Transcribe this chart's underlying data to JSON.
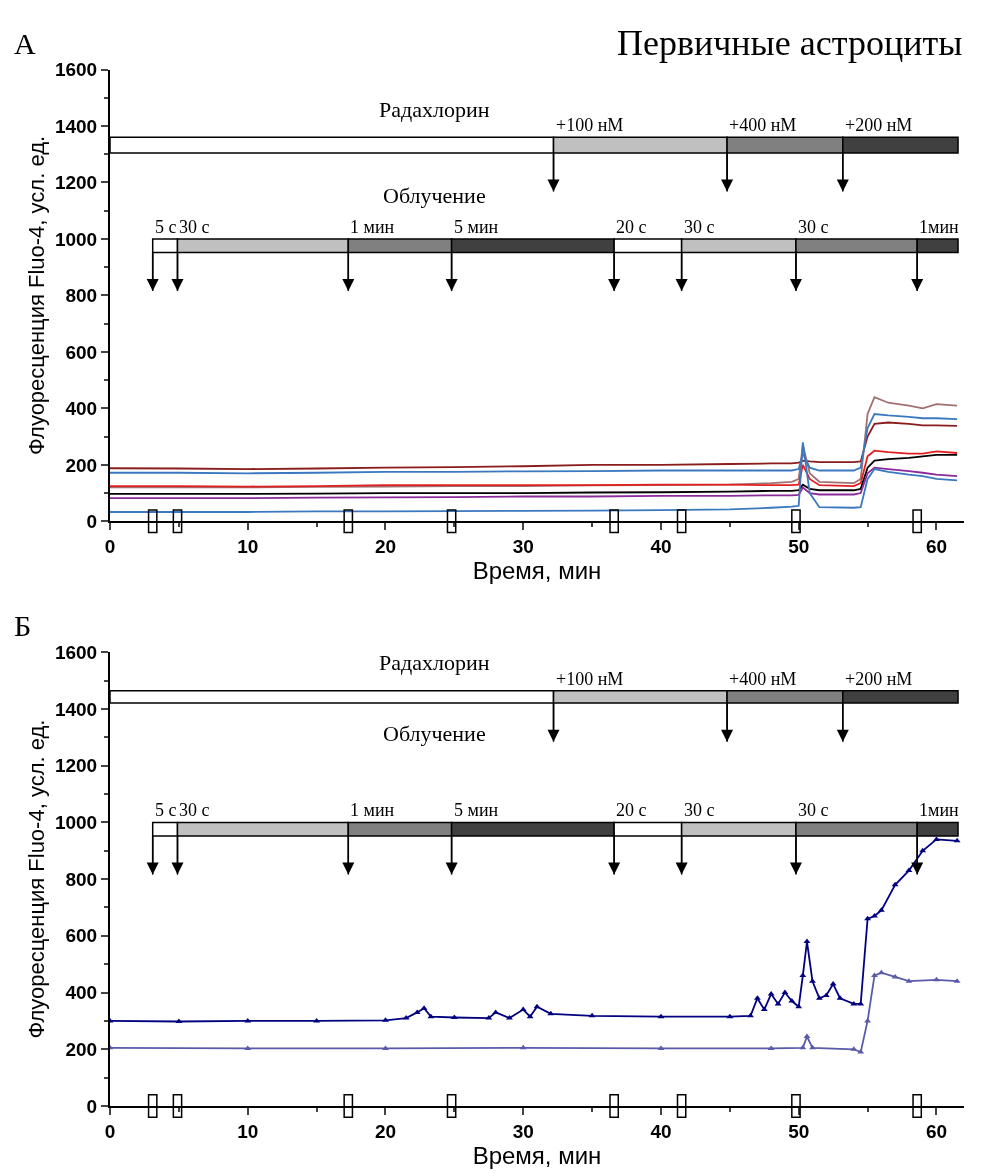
{
  "chart_data": [
    {
      "type": "line",
      "title": "Первичные астроциты",
      "xlabel": "Время, мин",
      "ylabel": "Флуоресценция Fluo-4, усл. ед.",
      "annotations": [
        "А",
        "Радахлорин",
        "Облучение"
      ],
      "xlim": [
        0,
        62
      ],
      "xticks": [
        0,
        10,
        20,
        30,
        40,
        50,
        60
      ],
      "ylim": [
        0,
        1600
      ],
      "yticks": [
        0,
        200,
        400,
        600,
        800,
        1000,
        1200,
        1400,
        1600
      ],
      "marker": "none",
      "series": [
        {
          "color": "#8b1c1c",
          "x": [
            0,
            5,
            10,
            15,
            20,
            25,
            30,
            35,
            40,
            45,
            48,
            49.5,
            50.0,
            50.3,
            50.8,
            51.5,
            54.0,
            54.5,
            55.0,
            55.5,
            56.5,
            58,
            59,
            60,
            61.5
          ],
          "values": [
            188,
            187,
            185,
            187,
            190,
            192,
            195,
            200,
            200,
            203,
            205,
            205,
            208,
            215,
            212,
            210,
            210,
            212,
            300,
            345,
            350,
            345,
            340,
            340,
            338
          ]
        },
        {
          "color": "#a07070",
          "x": [
            0,
            5,
            10,
            15,
            20,
            25,
            30,
            35,
            40,
            45,
            48,
            49.5,
            50.0,
            50.3,
            50.8,
            51.5,
            54.0,
            54.5,
            55.0,
            55.5,
            56.5,
            58,
            59,
            60,
            61.5
          ],
          "values": [
            120,
            120,
            120,
            122,
            123,
            125,
            125,
            127,
            128,
            130,
            135,
            140,
            150,
            270,
            170,
            140,
            135,
            150,
            380,
            440,
            420,
            410,
            400,
            415,
            410
          ]
        },
        {
          "color": "#3a78c0",
          "x": [
            0,
            5,
            10,
            15,
            20,
            25,
            30,
            35,
            40,
            45,
            48,
            49.5,
            50.0,
            50.3,
            50.8,
            51.5,
            54.0,
            54.5,
            55.0,
            55.5,
            56.5,
            58,
            59,
            60,
            61.5
          ],
          "values": [
            172,
            172,
            170,
            172,
            175,
            175,
            177,
            178,
            180,
            180,
            180,
            180,
            185,
            240,
            190,
            180,
            180,
            190,
            330,
            380,
            375,
            370,
            365,
            365,
            362
          ]
        },
        {
          "color": "#e02020",
          "x": [
            0,
            5,
            10,
            15,
            20,
            25,
            30,
            35,
            40,
            45,
            48,
            49.5,
            50.0,
            50.3,
            50.8,
            51.5,
            54.0,
            54.5,
            55.0,
            55.5,
            56.5,
            58,
            59,
            60,
            61.5
          ],
          "values": [
            125,
            125,
            123,
            125,
            128,
            128,
            128,
            128,
            130,
            130,
            128,
            128,
            130,
            200,
            150,
            128,
            125,
            135,
            230,
            250,
            245,
            240,
            240,
            248,
            242
          ]
        },
        {
          "color": "#000000",
          "x": [
            0,
            5,
            10,
            15,
            20,
            25,
            30,
            35,
            40,
            45,
            48,
            49.5,
            50.0,
            50.3,
            50.8,
            51.5,
            54.0,
            54.5,
            55.0,
            55.5,
            56.5,
            58,
            59,
            60,
            61.5
          ],
          "values": [
            97,
            97,
            97,
            98,
            100,
            100,
            100,
            102,
            103,
            105,
            108,
            108,
            110,
            130,
            115,
            110,
            110,
            115,
            190,
            215,
            220,
            225,
            230,
            235,
            235
          ]
        },
        {
          "color": "#8b2a9b",
          "x": [
            0,
            5,
            10,
            15,
            20,
            25,
            30,
            35,
            40,
            45,
            48,
            49.5,
            50.0,
            50.3,
            50.8,
            51.5,
            54.0,
            54.5,
            55.0,
            55.5,
            56.5,
            58,
            59,
            60,
            61.5
          ],
          "values": [
            82,
            82,
            82,
            84,
            85,
            86,
            88,
            88,
            90,
            90,
            92,
            92,
            94,
            120,
            100,
            95,
            95,
            100,
            170,
            190,
            185,
            178,
            172,
            165,
            160
          ]
        },
        {
          "color": "#3a78c0",
          "x": [
            0,
            5,
            10,
            15,
            20,
            25,
            30,
            35,
            40,
            45,
            48,
            49.5,
            50.0,
            50.3,
            50.8,
            51.5,
            54.0,
            54.5,
            55.0,
            55.5,
            56.5,
            58,
            59,
            60,
            61.5
          ],
          "values": [
            33,
            33,
            33,
            35,
            35,
            36,
            37,
            38,
            40,
            42,
            48,
            52,
            55,
            280,
            100,
            50,
            48,
            50,
            150,
            185,
            175,
            165,
            160,
            150,
            145
          ]
        }
      ],
      "ref_lines": [
        {
          "axis": "x",
          "value": 32.2,
          "label": "+100 нМ"
        },
        {
          "axis": "x",
          "value": 44.8,
          "label": "+400 нМ"
        },
        {
          "axis": "x",
          "value": 53.2,
          "label": "+200 нМ"
        },
        {
          "axis": "x",
          "value": 3.1,
          "label": "5 с"
        },
        {
          "axis": "x",
          "value": 4.9,
          "label": "30 с"
        },
        {
          "axis": "x",
          "value": 17.3,
          "label": "1 мин"
        },
        {
          "axis": "x",
          "value": 24.8,
          "label": "5 мин"
        },
        {
          "axis": "x",
          "value": 36.6,
          "label": "20 с"
        },
        {
          "axis": "x",
          "value": 41.5,
          "label": "30 с"
        },
        {
          "axis": "x",
          "value": 49.8,
          "label": "30 с"
        },
        {
          "axis": "x",
          "value": 58.6,
          "label": "1мин"
        }
      ]
    },
    {
      "type": "line",
      "xlabel": "Время, мин",
      "ylabel": "Флуоресценция Fluo-4, усл. ед.",
      "annotations": [
        "Б",
        "Радахлорин",
        "Облучение"
      ],
      "xlim": [
        0,
        62
      ],
      "xticks": [
        0,
        10,
        20,
        30,
        40,
        50,
        60
      ],
      "ylim": [
        0,
        1600
      ],
      "yticks": [
        0,
        200,
        400,
        600,
        800,
        1000,
        1200,
        1400,
        1600
      ],
      "marker": "triangle",
      "series": [
        {
          "color": "#000080",
          "x": [
            0,
            5,
            10,
            15,
            20,
            21.5,
            22.3,
            22.8,
            23.3,
            25,
            27.5,
            28,
            29,
            30,
            30.5,
            31,
            32,
            35,
            40,
            45,
            46.5,
            47,
            47.5,
            48,
            48.5,
            49,
            49.5,
            50,
            50.3,
            50.6,
            51,
            51.5,
            52,
            52.5,
            53,
            54,
            54.5,
            55,
            55.5,
            56,
            57,
            58,
            59,
            60,
            61.5
          ],
          "values": [
            300,
            298,
            300,
            300,
            302,
            310,
            330,
            345,
            315,
            312,
            310,
            330,
            310,
            340,
            315,
            350,
            325,
            318,
            315,
            315,
            318,
            380,
            340,
            395,
            360,
            400,
            370,
            350,
            460,
            580,
            440,
            380,
            390,
            430,
            380,
            360,
            360,
            660,
            670,
            690,
            780,
            830,
            900,
            940,
            935
          ]
        },
        {
          "color": "#5a5aaa",
          "x": [
            0,
            10,
            20,
            30,
            40,
            48,
            50.3,
            50.6,
            51,
            54,
            54.5,
            55.0,
            55.5,
            56,
            57,
            58,
            60,
            61.5
          ],
          "values": [
            205,
            203,
            203,
            205,
            203,
            203,
            205,
            245,
            205,
            200,
            190,
            300,
            460,
            470,
            455,
            440,
            445,
            440
          ]
        }
      ],
      "ref_lines": [
        {
          "axis": "x",
          "value": 32.2,
          "label": "+100 нМ"
        },
        {
          "axis": "x",
          "value": 44.8,
          "label": "+400 нМ"
        },
        {
          "axis": "x",
          "value": 53.2,
          "label": "+200 нМ"
        },
        {
          "axis": "x",
          "value": 3.1,
          "label": "5 с"
        },
        {
          "axis": "x",
          "value": 4.9,
          "label": "30 с"
        },
        {
          "axis": "x",
          "value": 17.3,
          "label": "1 мин"
        },
        {
          "axis": "x",
          "value": 24.8,
          "label": "5 мин"
        },
        {
          "axis": "x",
          "value": 36.6,
          "label": "20 с"
        },
        {
          "axis": "x",
          "value": 41.5,
          "label": "30 с"
        },
        {
          "axis": "x",
          "value": 49.8,
          "label": "30 с"
        },
        {
          "axis": "x",
          "value": 58.6,
          "label": "1мин"
        }
      ]
    }
  ]
}
